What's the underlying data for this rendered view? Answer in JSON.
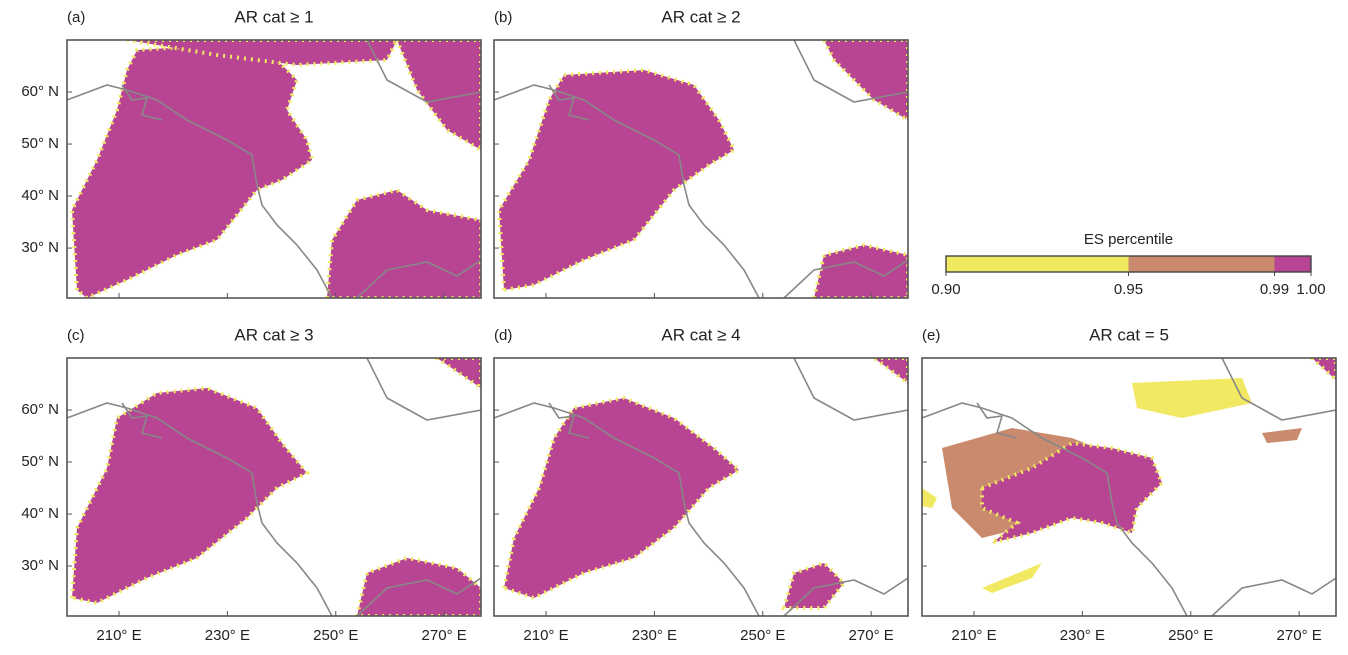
{
  "map": {
    "xlim": [
      200.4,
      276.8
    ],
    "ylim": [
      20.4,
      70
    ],
    "xticks": [
      {
        "value": 210,
        "label": "210° E"
      },
      {
        "value": 230,
        "label": "230° E"
      },
      {
        "value": 250,
        "label": "250° E"
      },
      {
        "value": 270,
        "label": "270° E"
      }
    ],
    "yticks": [
      {
        "value": 60,
        "label": "60° N"
      },
      {
        "value": 50,
        "label": "50° N"
      },
      {
        "value": 40,
        "label": "40° N"
      },
      {
        "value": 30,
        "label": "30° N"
      }
    ]
  },
  "panels": [
    {
      "label": "(a)",
      "title": "AR cat ≥ 1"
    },
    {
      "label": "(b)",
      "title": "AR cat ≥ 2"
    },
    {
      "label": "(c)",
      "title": "AR cat ≥ 3"
    },
    {
      "label": "(d)",
      "title": "AR cat ≥ 4"
    },
    {
      "label": "(e)",
      "title": "AR cat = 5"
    }
  ],
  "colorbar": {
    "title": "ES percentile",
    "lim": [
      0.9,
      1.0
    ],
    "ticks": [
      {
        "value": 0.9,
        "label": "0.90"
      },
      {
        "value": 0.95,
        "label": "0.95"
      },
      {
        "value": 0.99,
        "label": "0.99"
      },
      {
        "value": 1.0,
        "label": "1.00"
      }
    ],
    "colors": [
      "#f2e963",
      "#c98a6e",
      "#b84593"
    ]
  }
}
